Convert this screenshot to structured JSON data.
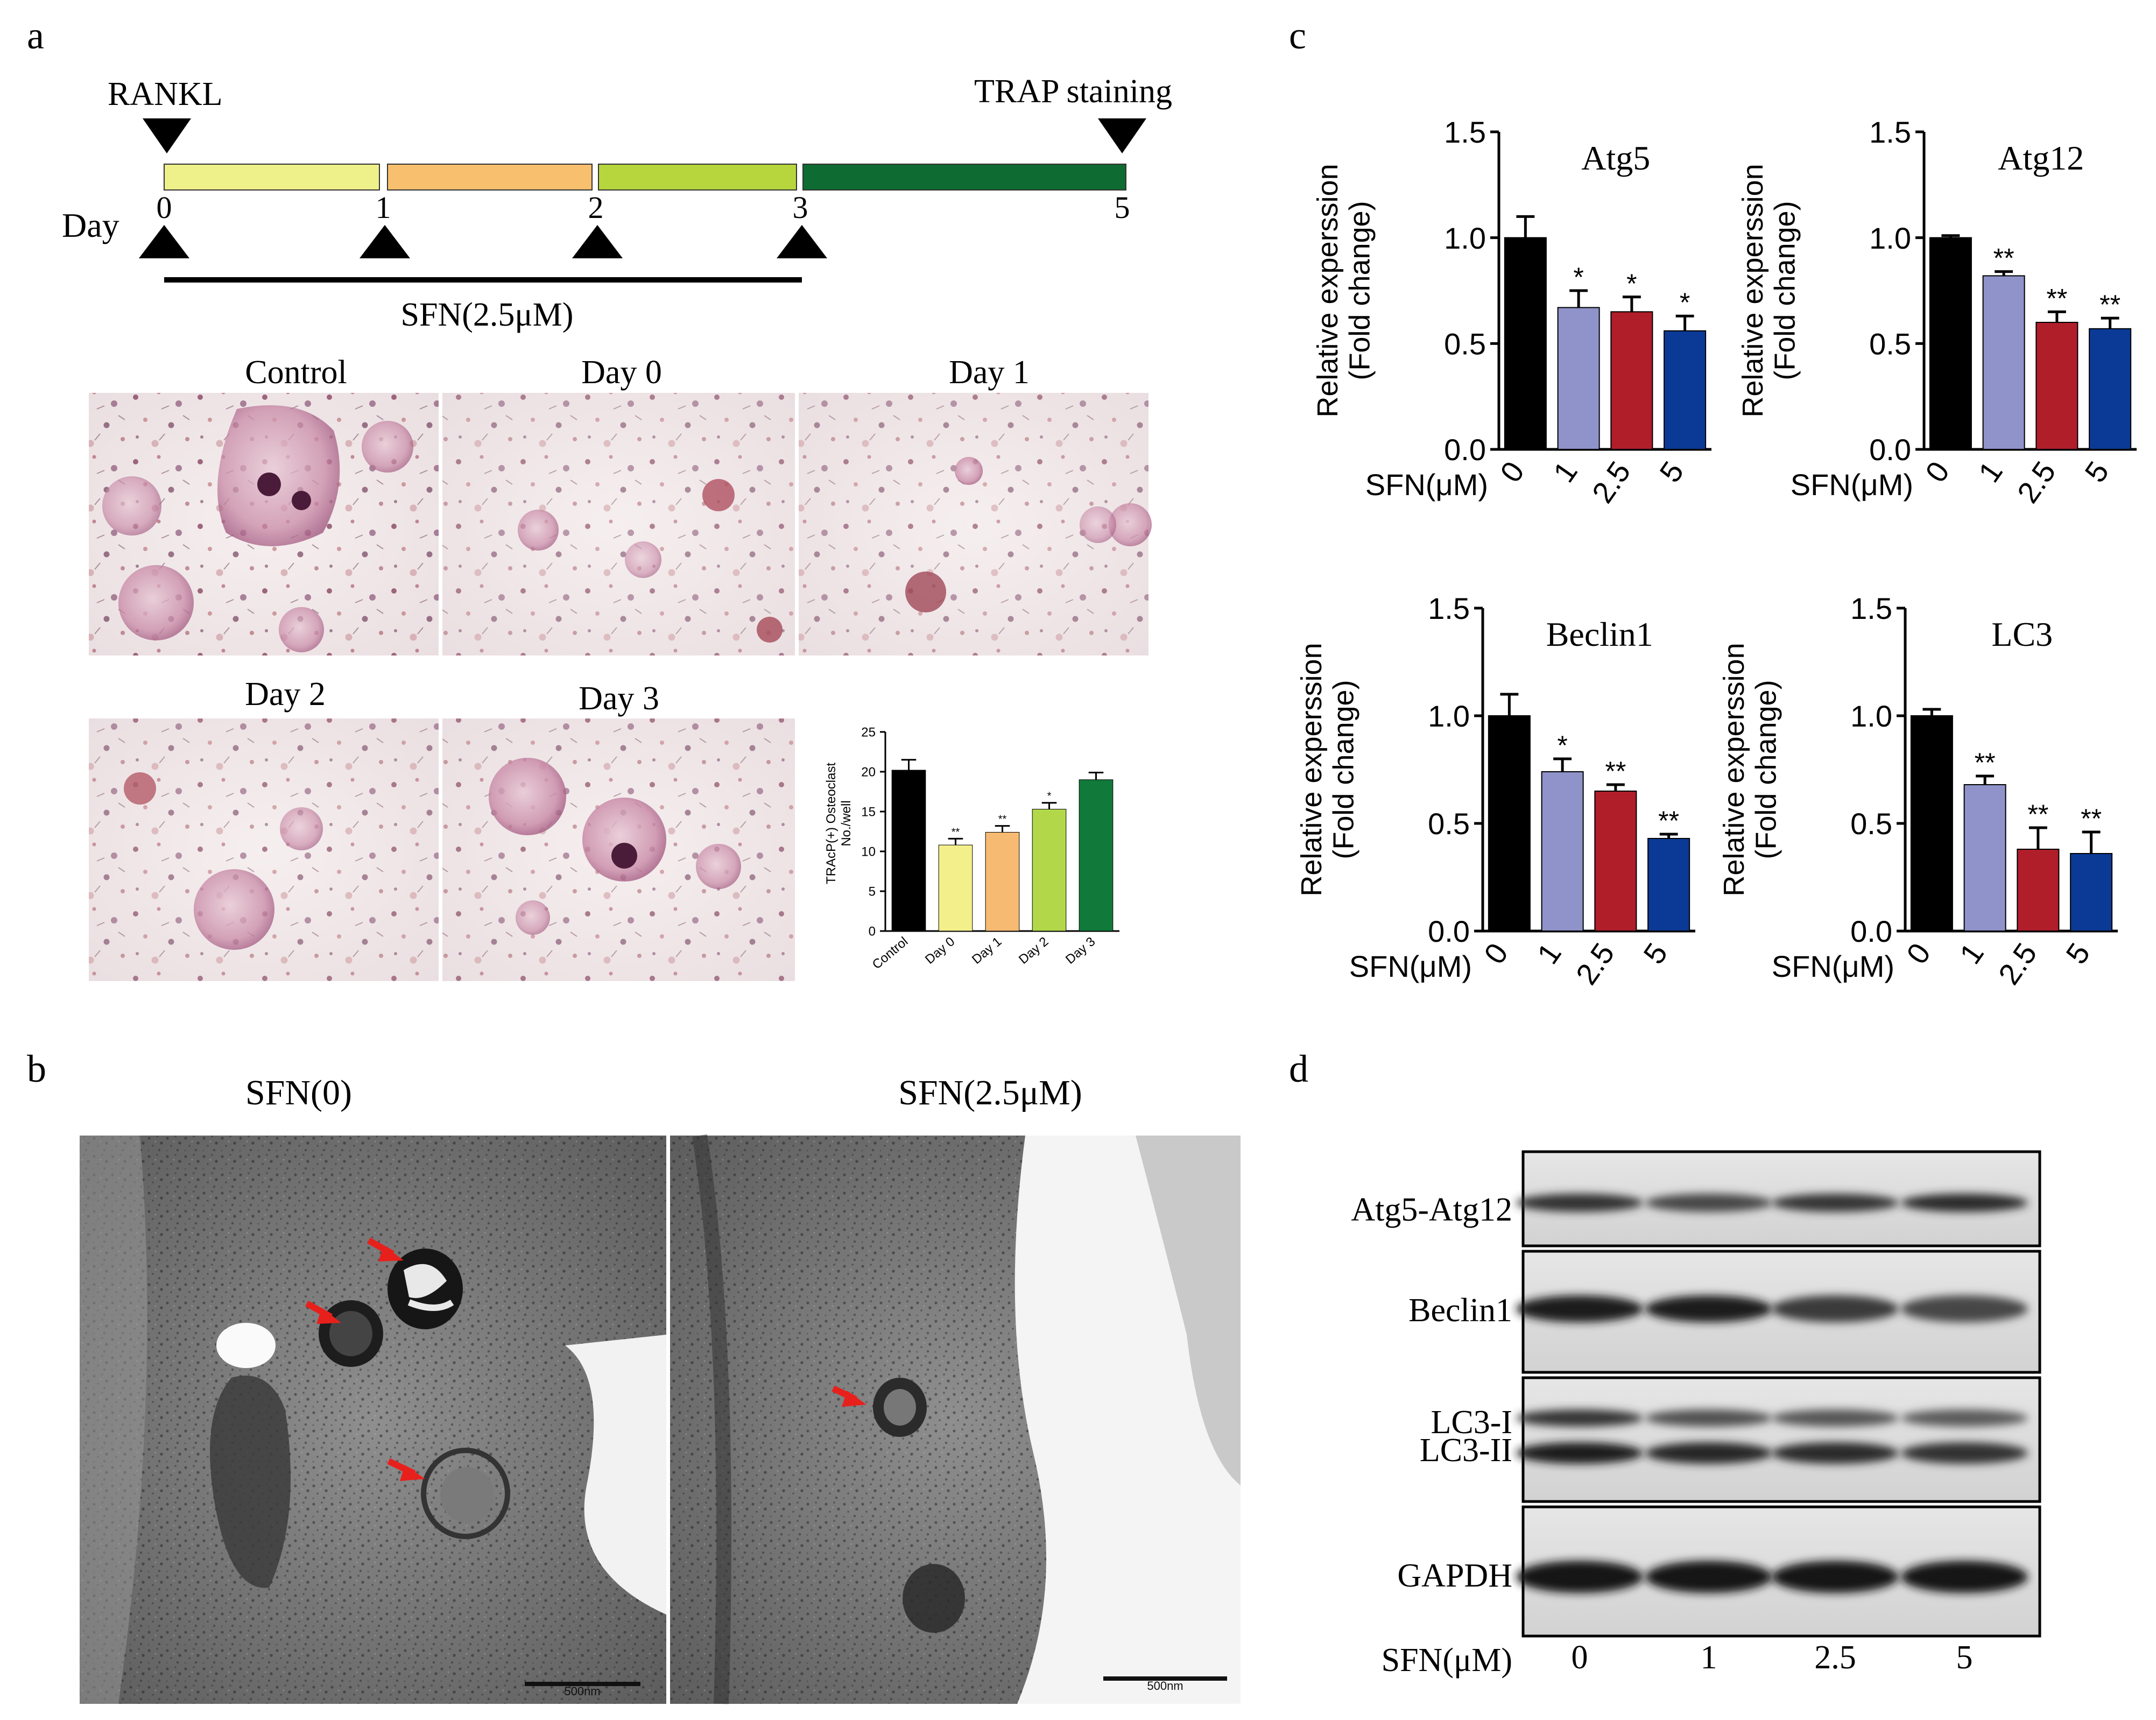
{
  "panel_labels": {
    "a": "a",
    "b": "b",
    "c": "c",
    "d": "d"
  },
  "panel_a": {
    "timeline": {
      "start_label": "RANKL",
      "end_label": "TRAP staining",
      "day_label": "Day",
      "days": [
        "0",
        "1",
        "2",
        "3",
        "5"
      ],
      "treatment_label": "SFN(2.5μM)",
      "segment_colors": [
        "#eef08a",
        "#f7bf6e",
        "#b7d63e",
        "#0e6b32"
      ]
    },
    "micrographs": [
      "Control",
      "Day 0",
      "Day 1",
      "Day 2",
      "Day 3"
    ],
    "inset_chart_ylabel_1": "TRAcP(+) Osteoclast",
    "inset_chart_ylabel_2": "No./well"
  },
  "panel_b": {
    "images": [
      "SFN(0)",
      "SFN(2.5μM)"
    ],
    "scale_bar": "500nm"
  },
  "panel_d": {
    "bands": [
      "Atg5-Atg12",
      "Beclin1",
      "LC3-I",
      "LC3-II",
      "GAPDH"
    ],
    "x_title": "SFN(μM)",
    "lanes": [
      "0",
      "1",
      "2.5",
      "5"
    ]
  },
  "chart_data": [
    {
      "type": "bar",
      "panel": "a-inset",
      "categories": [
        "Control",
        "Day 0",
        "Day 1",
        "Day 2",
        "Day 3"
      ],
      "values": [
        20.2,
        10.8,
        12.4,
        15.3,
        19.0
      ],
      "errors": [
        1.3,
        0.8,
        0.8,
        0.8,
        0.9
      ],
      "significance": [
        "",
        "**",
        "**",
        "*",
        ""
      ],
      "colors": [
        "#000000",
        "#f3f08c",
        "#f6ba72",
        "#b2d84a",
        "#117a3a"
      ],
      "ylabel": "TRAcP(+) Osteoclast No./well",
      "ylim": [
        0,
        25
      ],
      "yticks": [
        "0",
        "5",
        "10",
        "15",
        "20",
        "25"
      ]
    },
    {
      "type": "bar",
      "panel": "c",
      "title": "Atg5",
      "categories": [
        "0",
        "1",
        "2.5",
        "5"
      ],
      "values": [
        1.0,
        0.67,
        0.65,
        0.56
      ],
      "errors": [
        0.1,
        0.08,
        0.07,
        0.07
      ],
      "significance": [
        "",
        "*",
        "*",
        "*"
      ],
      "colors": [
        "#000000",
        "#8f93c9",
        "#b01e2a",
        "#0b3a96"
      ],
      "ylabel": "Relative experssion (Fold change)",
      "xlabel": "SFN(μM)",
      "ylim": [
        0,
        1.5
      ],
      "yticks": [
        "0.0",
        "0.5",
        "1.0",
        "1.5"
      ]
    },
    {
      "type": "bar",
      "panel": "c",
      "title": "Atg12",
      "categories": [
        "0",
        "1",
        "2.5",
        "5"
      ],
      "values": [
        1.0,
        0.82,
        0.6,
        0.57
      ],
      "errors": [
        0.01,
        0.02,
        0.05,
        0.05
      ],
      "significance": [
        "",
        "**",
        "**",
        "**"
      ],
      "colors": [
        "#000000",
        "#8f93c9",
        "#b01e2a",
        "#0b3a96"
      ],
      "ylabel": "Relative experssion (Fold change)",
      "xlabel": "SFN(μM)",
      "ylim": [
        0,
        1.5
      ],
      "yticks": [
        "0.0",
        "0.5",
        "1.0",
        "1.5"
      ]
    },
    {
      "type": "bar",
      "panel": "c",
      "title": "Beclin1",
      "categories": [
        "0",
        "1",
        "2.5",
        "5"
      ],
      "values": [
        1.0,
        0.74,
        0.65,
        0.43
      ],
      "errors": [
        0.1,
        0.06,
        0.03,
        0.02
      ],
      "significance": [
        "",
        "*",
        "**",
        "**"
      ],
      "colors": [
        "#000000",
        "#8f93c9",
        "#b01e2a",
        "#0b3a96"
      ],
      "ylabel": "Relative experssion (Fold change)",
      "xlabel": "SFN(μM)",
      "ylim": [
        0,
        1.5
      ],
      "yticks": [
        "0.0",
        "0.5",
        "1.0",
        "1.5"
      ]
    },
    {
      "type": "bar",
      "panel": "c",
      "title": "LC3",
      "categories": [
        "0",
        "1",
        "2.5",
        "5"
      ],
      "values": [
        1.0,
        0.68,
        0.38,
        0.36
      ],
      "errors": [
        0.03,
        0.04,
        0.1,
        0.1
      ],
      "significance": [
        "",
        "**",
        "**",
        "**"
      ],
      "colors": [
        "#000000",
        "#8f93c9",
        "#b01e2a",
        "#0b3a96"
      ],
      "ylabel": "Relative experssion (Fold change)",
      "xlabel": "SFN(μM)",
      "ylim": [
        0,
        1.5
      ],
      "yticks": [
        "0.0",
        "0.5",
        "1.0",
        "1.5"
      ]
    }
  ]
}
